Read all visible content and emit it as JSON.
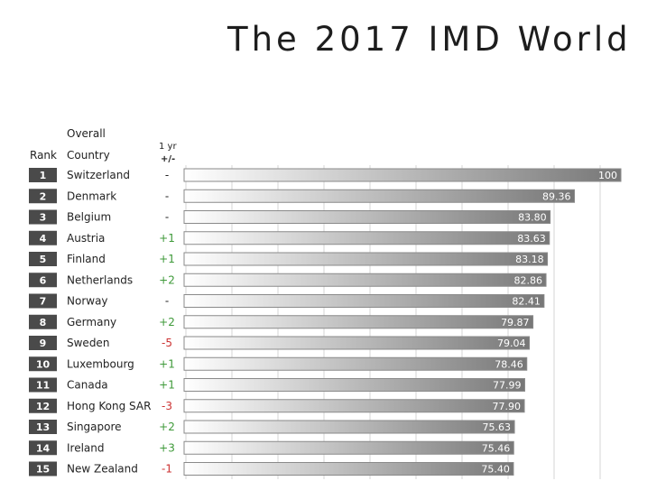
{
  "title": "The 2017 IMD World",
  "headers": {
    "rank": "Rank",
    "overall": "Overall",
    "country": "Country",
    "one_yr": "1 yr",
    "change": "+/-"
  },
  "colors": {
    "up": "#3f9a3a",
    "down": "#cc3333",
    "flat": "#222222",
    "bar_dark": "#777777",
    "bar_light": "#ffffff",
    "rank_box": "#4a4a4a"
  },
  "chart_data": {
    "type": "bar",
    "orientation": "horizontal",
    "xlim": [
      0,
      100
    ],
    "grid": true,
    "rows": [
      {
        "rank": "1",
        "country": "Switzerland",
        "change": "-",
        "value": 100,
        "label": "100"
      },
      {
        "rank": "2",
        "country": "Denmark",
        "change": "-",
        "value": 89.36,
        "label": "89.36"
      },
      {
        "rank": "3",
        "country": "Belgium",
        "change": "-",
        "value": 83.8,
        "label": "83.80"
      },
      {
        "rank": "4",
        "country": "Austria",
        "change": "+1",
        "value": 83.63,
        "label": "83.63"
      },
      {
        "rank": "5",
        "country": "Finland",
        "change": "+1",
        "value": 83.18,
        "label": "83.18"
      },
      {
        "rank": "6",
        "country": "Netherlands",
        "change": "+2",
        "value": 82.86,
        "label": "82.86"
      },
      {
        "rank": "7",
        "country": "Norway",
        "change": "-",
        "value": 82.41,
        "label": "82.41"
      },
      {
        "rank": "8",
        "country": "Germany",
        "change": "+2",
        "value": 79.87,
        "label": "79.87"
      },
      {
        "rank": "9",
        "country": "Sweden",
        "change": "-5",
        "value": 79.04,
        "label": "79.04"
      },
      {
        "rank": "10",
        "country": "Luxembourg",
        "change": "+1",
        "value": 78.46,
        "label": "78.46"
      },
      {
        "rank": "11",
        "country": "Canada",
        "change": "+1",
        "value": 77.99,
        "label": "77.99"
      },
      {
        "rank": "12",
        "country": "Hong Kong SAR",
        "change": "-3",
        "value": 77.9,
        "label": "77.90"
      },
      {
        "rank": "13",
        "country": "Singapore",
        "change": "+2",
        "value": 75.63,
        "label": "75.63"
      },
      {
        "rank": "14",
        "country": "Ireland",
        "change": "+3",
        "value": 75.46,
        "label": "75.46"
      },
      {
        "rank": "15",
        "country": "New Zealand",
        "change": "-1",
        "value": 75.4,
        "label": "75.40"
      }
    ]
  }
}
